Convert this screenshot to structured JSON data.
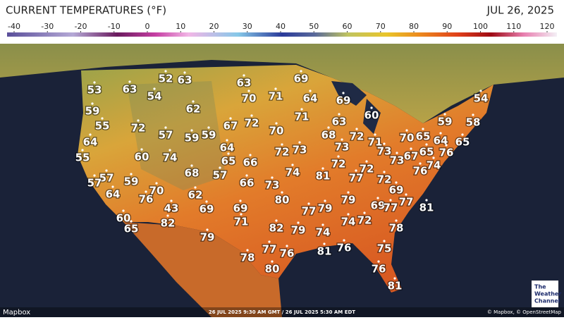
{
  "header": {
    "title": "CURRENT TEMPERATURES (°F)",
    "date": "JUL 26, 2025"
  },
  "legend": {
    "ticks": [
      -40,
      -30,
      -20,
      -10,
      0,
      10,
      20,
      30,
      40,
      50,
      60,
      70,
      80,
      90,
      100,
      110,
      120
    ]
  },
  "temperatures": [
    53,
    63,
    52,
    63,
    54,
    59,
    55,
    62,
    72,
    57,
    59,
    59,
    67,
    72,
    63,
    70,
    71,
    69,
    64,
    71,
    69,
    60,
    70,
    63,
    68,
    72,
    71,
    70,
    65,
    59,
    58,
    54,
    64,
    65,
    76,
    65,
    67,
    73,
    73,
    76,
    74,
    64,
    55,
    60,
    74,
    64,
    65,
    66,
    72,
    73,
    73,
    72,
    72,
    77,
    74,
    81,
    72,
    69,
    57,
    57,
    59,
    68,
    57,
    66,
    73,
    80,
    64,
    76,
    70,
    62,
    43,
    69,
    69,
    79,
    77,
    79,
    69,
    77,
    77,
    81,
    60,
    65,
    82,
    71,
    74,
    72,
    82,
    79,
    74,
    78,
    79,
    77,
    76,
    81,
    76,
    75,
    78,
    80,
    76,
    81
  ],
  "footer": {
    "left": "Mapbox",
    "timestamp": "26 JUL 2025 9:30 AM GMT / 26 JUL 2025 5:30 AM EDT",
    "attribution": "© Mapbox, © OpenStreetMap",
    "logo": [
      "The",
      "Weather",
      "Channel"
    ]
  }
}
